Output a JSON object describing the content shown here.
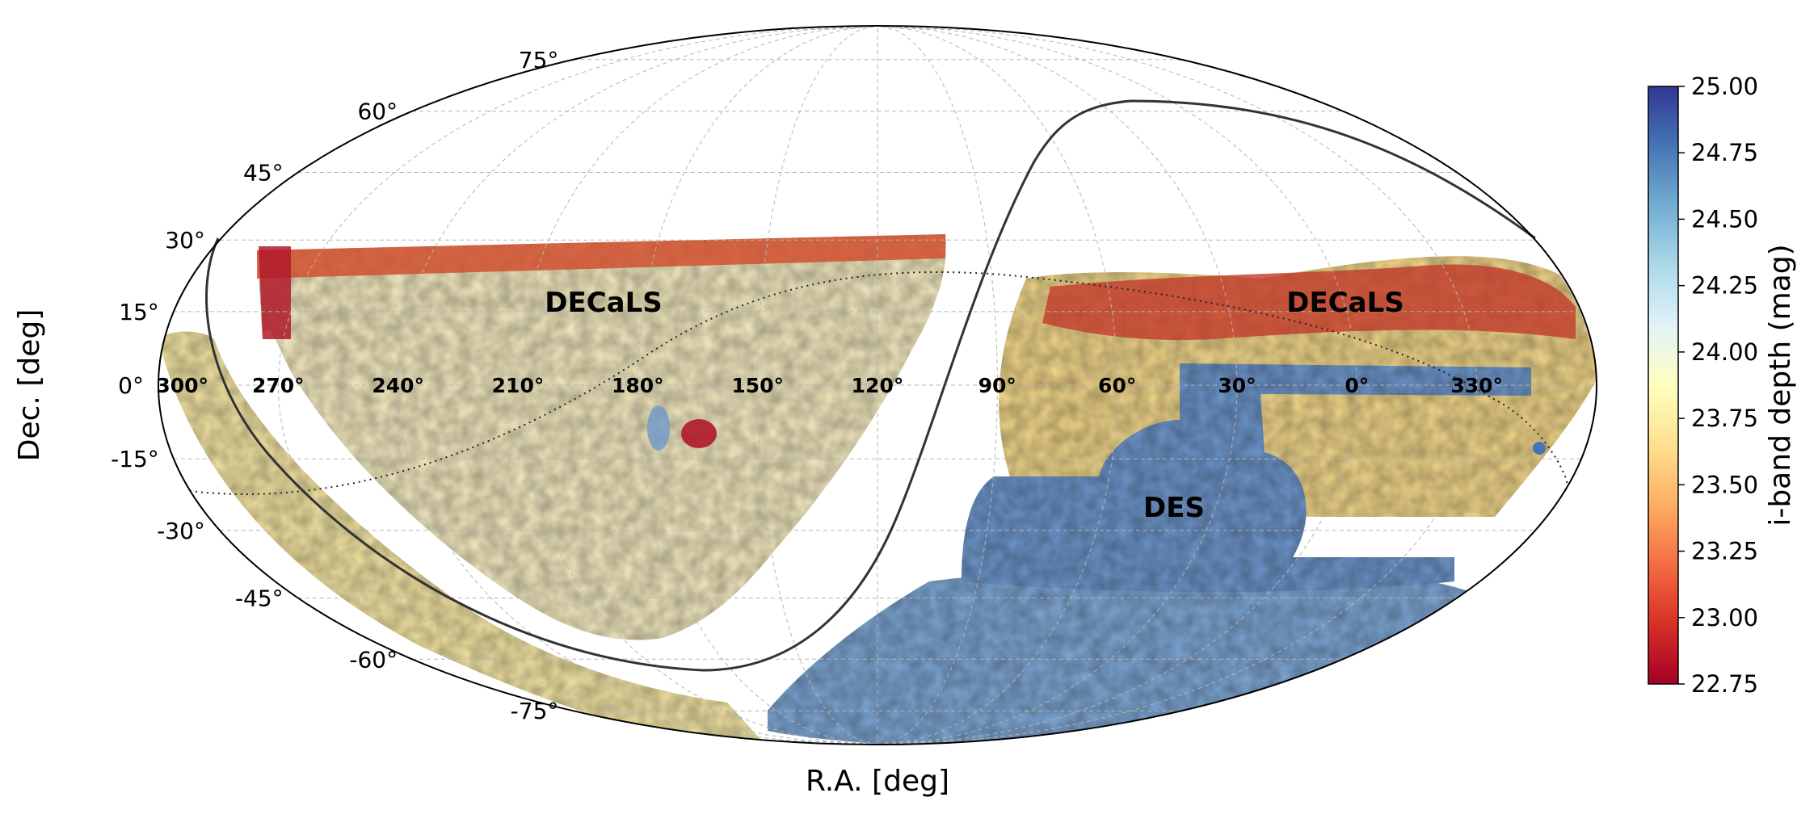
{
  "chart_data": {
    "type": "heatmap",
    "projection": "mollweide",
    "xlabel": "R.A. [deg]",
    "ylabel": "Dec. [deg]",
    "colorbar": {
      "label": "i-band depth (mag)",
      "range": [
        22.75,
        25.0
      ],
      "ticks": [
        "25.00",
        "24.75",
        "24.50",
        "24.25",
        "24.00",
        "23.75",
        "23.50",
        "23.25",
        "23.00",
        "22.75"
      ],
      "colormap": [
        "#a50026",
        "#d73027",
        "#f46d43",
        "#fdae61",
        "#fee090",
        "#ffffbf",
        "#e0f3f8",
        "#abd9e9",
        "#74add1",
        "#4575b4",
        "#313695"
      ]
    },
    "ra_ticks": [
      "300°",
      "270°",
      "240°",
      "210°",
      "180°",
      "150°",
      "120°",
      "90°",
      "60°",
      "30°",
      "0°",
      "330°"
    ],
    "dec_ticks": [
      "75°",
      "60°",
      "45°",
      "30°",
      "15°",
      "0°",
      "-15°",
      "-30°",
      "-45°",
      "-60°",
      "-75°"
    ],
    "annotations": [
      "DECaLS",
      "DECaLS",
      "DES"
    ],
    "grid": true,
    "regions": [
      {
        "name": "DECaLS",
        "ra_range": [
          110,
          285
        ],
        "dec_range": [
          -70,
          34
        ],
        "depth_mag": 23.9
      },
      {
        "name": "DECaLS",
        "ra_range": [
          -45,
          95
        ],
        "dec_range": [
          -5,
          30
        ],
        "depth_mag": 23.4
      },
      {
        "name": "DES",
        "ra_range": [
          -60,
          90
        ],
        "dec_range": [
          -65,
          5
        ],
        "depth_mag": 24.6
      }
    ]
  }
}
